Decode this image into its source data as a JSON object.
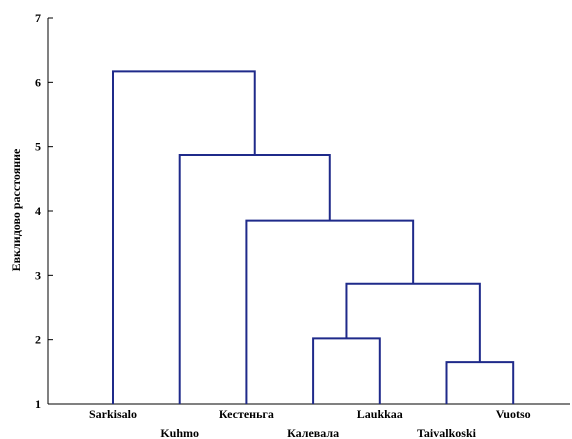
{
  "chart_data": {
    "type": "dendrogram",
    "ylabel": "Евклидово расстояние",
    "ylim": [
      1,
      7
    ],
    "yticks": [
      1,
      2,
      3,
      4,
      5,
      6,
      7
    ],
    "leaves": [
      "Sarkisalo",
      "Kuhmo",
      "Кестеньга",
      "Калевала",
      "Laukkaa",
      "Taivalkoski",
      "Vuotso"
    ],
    "merges": [
      {
        "left": "Taivalkoski",
        "right": "Vuotso",
        "height": 1.65
      },
      {
        "left": "Калевала",
        "right": "Laukkaa",
        "height": 2.02
      },
      {
        "left": "Калевала + Laukkaa",
        "right": "Taivalkoski + Vuotso",
        "height": 2.87
      },
      {
        "left": "Кестеньга",
        "right": "Калевала + Laukkaa + Taivalkoski + Vuotso",
        "height": 3.85
      },
      {
        "left": "Kuhmo",
        "right": "Кестеньга + Калевала + Laukkaa + Taivalkoski + Vuotso",
        "height": 4.87
      },
      {
        "left": "Sarkisalo",
        "right": "Kuhmo + Кестеньга + Калевала + Laukkaa + Taivalkoski + Vuotso",
        "height": 6.17
      }
    ],
    "colors": {
      "links": "#1f2a8a",
      "axis": "#000000"
    }
  }
}
